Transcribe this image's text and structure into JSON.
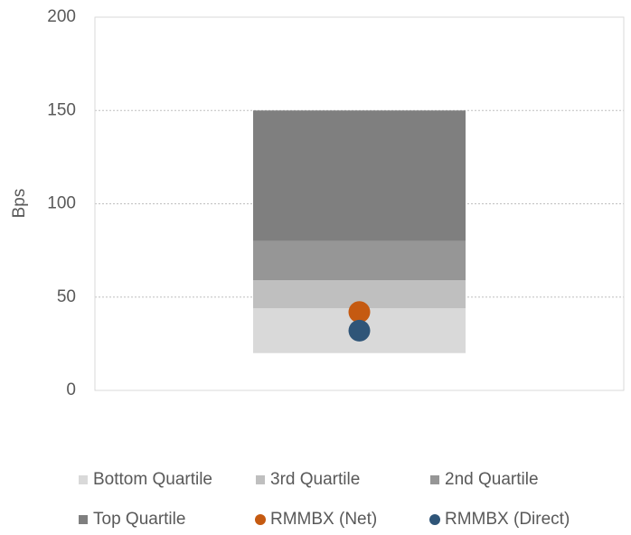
{
  "chart_data": {
    "type": "bar",
    "stacked": true,
    "ylabel": "Bps",
    "categories": [
      null
    ],
    "base": 20,
    "series": [
      {
        "name": "Bottom Quartile",
        "color": "#d9d9d9",
        "values": [
          24
        ]
      },
      {
        "name": "3rd Quartile",
        "color": "#bfbfbf",
        "values": [
          15
        ]
      },
      {
        "name": "2nd Quartile",
        "color": "#969696",
        "values": [
          21
        ]
      },
      {
        "name": "Top Quartile",
        "color": "#7f7f7f",
        "values": [
          70
        ]
      },
      {
        "name": "RMMBX (Net)",
        "color": "#c55a11",
        "type": "scatter",
        "values": [
          42
        ]
      },
      {
        "name": "RMMBX (Direct)",
        "color": "#2f5578",
        "type": "scatter",
        "values": [
          32
        ]
      }
    ],
    "ylim": [
      0,
      200
    ],
    "yticks": [
      0,
      50,
      100,
      150,
      200
    ],
    "grid": true,
    "legend": "bottom"
  }
}
